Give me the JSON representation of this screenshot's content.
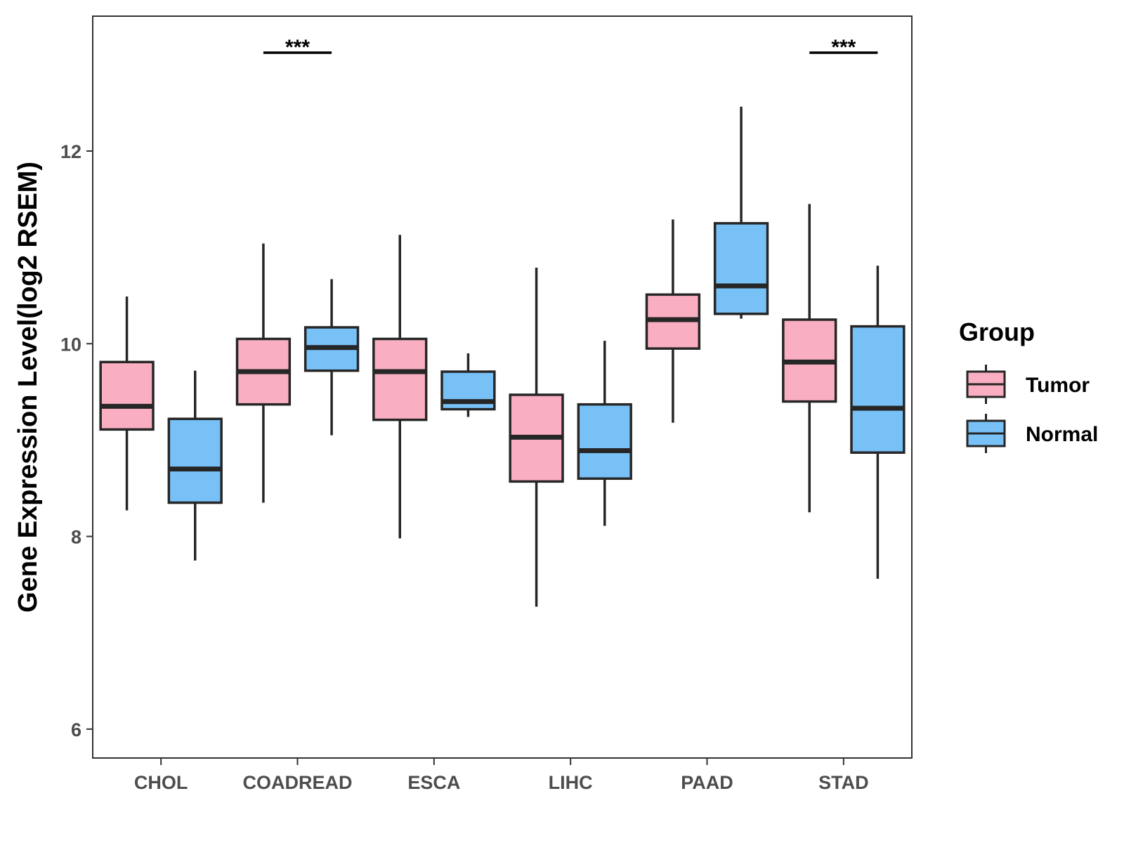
{
  "chart_data": {
    "type": "boxplot",
    "title": "",
    "xlabel": "",
    "ylabel": "Gene Expression Level(log2 RSEM)",
    "ylim": [
      5.7,
      13.4
    ],
    "yticks": [
      6,
      8,
      10,
      12
    ],
    "ytick_labels": [
      "6",
      "8",
      "10",
      "12"
    ],
    "categories": [
      "CHOL",
      "COADREAD",
      "ESCA",
      "LIHC",
      "PAAD",
      "STAD"
    ],
    "grid": false,
    "legend": {
      "title": "Group",
      "position": "right",
      "entries": [
        "Tumor",
        "Normal"
      ]
    },
    "series": [
      {
        "name": "Tumor",
        "color": "#F9AFC1",
        "boxes": [
          {
            "min": 8.27,
            "q1": 9.11,
            "median": 9.35,
            "q3": 9.81,
            "max": 10.49
          },
          {
            "min": 8.35,
            "q1": 9.37,
            "median": 9.71,
            "q3": 10.05,
            "max": 11.04
          },
          {
            "min": 7.98,
            "q1": 9.21,
            "median": 9.71,
            "q3": 10.05,
            "max": 11.13
          },
          {
            "min": 7.27,
            "q1": 8.57,
            "median": 9.03,
            "q3": 9.47,
            "max": 10.79
          },
          {
            "min": 9.18,
            "q1": 9.95,
            "median": 10.25,
            "q3": 10.51,
            "max": 11.29
          },
          {
            "min": 8.25,
            "q1": 9.4,
            "median": 9.81,
            "q3": 10.25,
            "max": 11.45
          }
        ]
      },
      {
        "name": "Normal",
        "color": "#78C1F7",
        "boxes": [
          {
            "min": 7.75,
            "q1": 8.35,
            "median": 8.7,
            "q3": 9.22,
            "max": 9.72
          },
          {
            "min": 9.05,
            "q1": 9.72,
            "median": 9.96,
            "q3": 10.17,
            "max": 10.67
          },
          {
            "min": 9.24,
            "q1": 9.32,
            "median": 9.4,
            "q3": 9.71,
            "max": 9.9
          },
          {
            "min": 8.11,
            "q1": 8.6,
            "median": 8.89,
            "q3": 9.37,
            "max": 10.03
          },
          {
            "min": 10.26,
            "q1": 10.31,
            "median": 10.6,
            "q3": 11.25,
            "max": 12.46
          },
          {
            "min": 7.56,
            "q1": 8.87,
            "median": 9.33,
            "q3": 10.18,
            "max": 10.81
          }
        ]
      }
    ],
    "annotations": [
      {
        "category": "COADREAD",
        "label": "***"
      },
      {
        "category": "STAD",
        "label": "***"
      }
    ]
  }
}
